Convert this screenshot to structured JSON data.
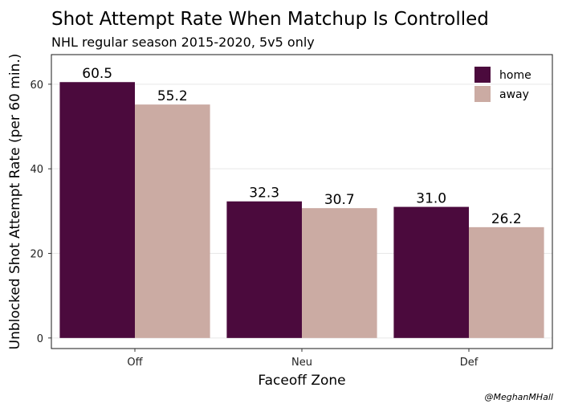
{
  "chart_data": {
    "type": "bar",
    "title": "Shot Attempt Rate When Matchup Is Controlled",
    "subtitle": "NHL regular season 2015-2020, 5v5 only",
    "xlabel": "Faceoff Zone",
    "ylabel": "Unblocked Shot Attempt Rate (per 60 min.)",
    "categories": [
      "Off",
      "Neu",
      "Def"
    ],
    "series": [
      {
        "name": "home",
        "values": [
          60.5,
          32.3,
          31.0
        ],
        "labels": [
          "60.5",
          "32.3",
          "31.0"
        ],
        "color": "#4b0a3d"
      },
      {
        "name": "away",
        "values": [
          55.2,
          30.7,
          26.2
        ],
        "labels": [
          "55.2",
          "30.7",
          "26.2"
        ],
        "color": "#cbaba3"
      }
    ],
    "ylim": [
      -2.5,
      67
    ],
    "yticks": [
      0,
      20,
      40,
      60
    ],
    "ytick_labels": [
      "0",
      "20",
      "40",
      "60"
    ],
    "grid": true,
    "legend_position": "top-right",
    "caption": "@MeghanMHall"
  }
}
